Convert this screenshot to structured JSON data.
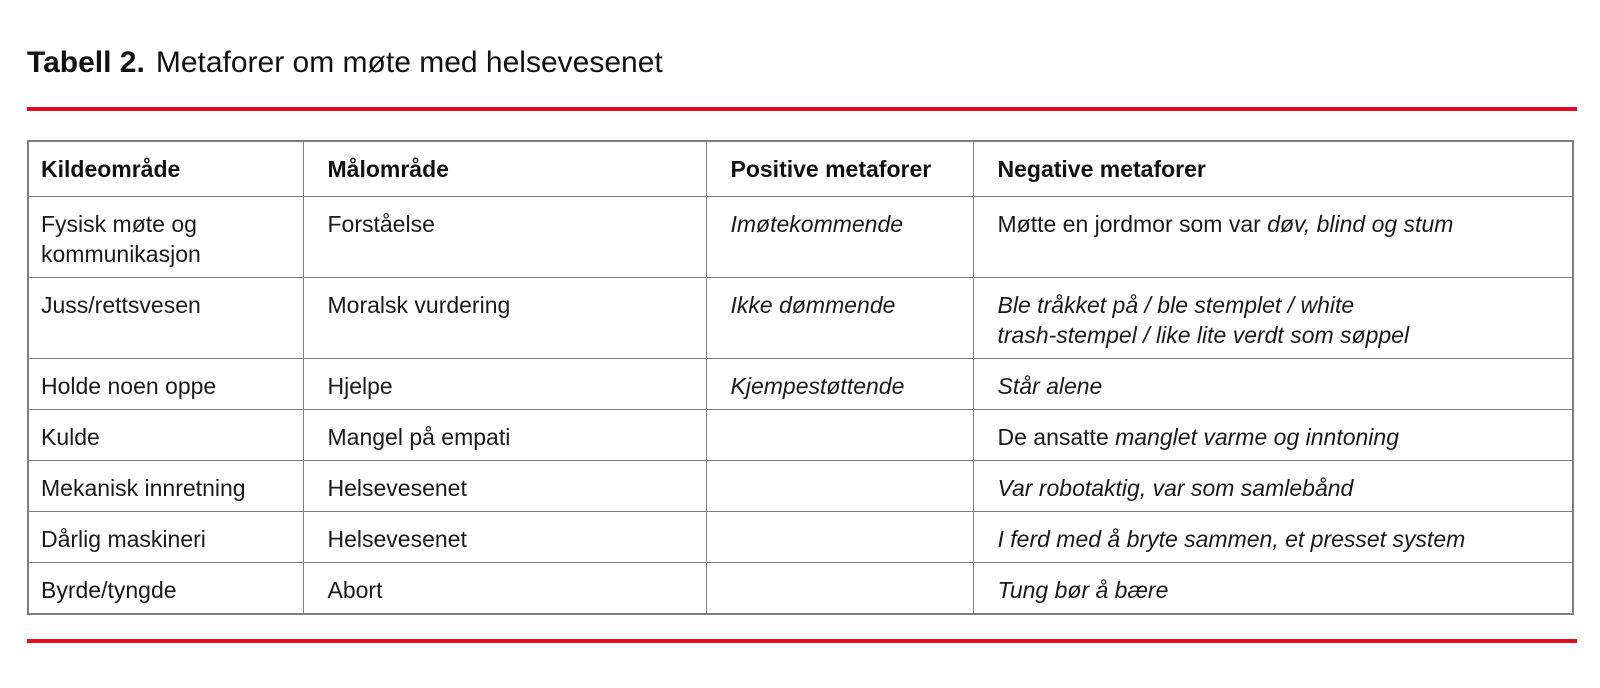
{
  "caption": {
    "label": "Tabell 2.",
    "text": "Metaforer om møte med helsevesenet"
  },
  "colors": {
    "accent": "#e30b1e",
    "border": "#7e7e7e",
    "text": "#1a1a1a"
  },
  "table": {
    "columns": [
      "Kildeområde",
      "Målområde",
      "Positive metaforer",
      "Negative metaforer"
    ],
    "rows": [
      [
        [
          {
            "t": "Fysisk møte og\nkommunikasjon"
          }
        ],
        [
          {
            "t": "Forståelse"
          }
        ],
        [
          {
            "t": "Imøtekommende",
            "i": true
          }
        ],
        [
          {
            "t": "Møtte en jordmor som var "
          },
          {
            "t": "døv, blind og stum",
            "i": true
          }
        ]
      ],
      [
        [
          {
            "t": "Juss/rettsvesen"
          }
        ],
        [
          {
            "t": "Moralsk vurdering"
          }
        ],
        [
          {
            "t": "Ikke dømmende",
            "i": true
          }
        ],
        [
          {
            "t": "Ble tråkket på / ble stemplet / white\ntrash-stempel / like lite verdt som søppel",
            "i": true
          }
        ]
      ],
      [
        [
          {
            "t": "Holde noen oppe"
          }
        ],
        [
          {
            "t": "Hjelpe"
          }
        ],
        [
          {
            "t": "Kjempestøttende",
            "i": true
          }
        ],
        [
          {
            "t": "Står alene",
            "i": true
          }
        ]
      ],
      [
        [
          {
            "t": "Kulde"
          }
        ],
        [
          {
            "t": "Mangel på empati"
          }
        ],
        [],
        [
          {
            "t": "De ansatte "
          },
          {
            "t": "manglet varme og inntoning",
            "i": true
          }
        ]
      ],
      [
        [
          {
            "t": "Mekanisk innretning"
          }
        ],
        [
          {
            "t": "Helsevesenet"
          }
        ],
        [],
        [
          {
            "t": "Var robotaktig, var som samlebånd",
            "i": true
          }
        ]
      ],
      [
        [
          {
            "t": "Dårlig maskineri"
          }
        ],
        [
          {
            "t": "Helsevesenet"
          }
        ],
        [],
        [
          {
            "t": "I ferd med å bryte sammen, et presset system",
            "i": true
          }
        ]
      ],
      [
        [
          {
            "t": "Byrde/tyngde"
          }
        ],
        [
          {
            "t": "Abort"
          }
        ],
        [],
        [
          {
            "t": "Tung bør å bære",
            "i": true
          }
        ]
      ]
    ]
  }
}
